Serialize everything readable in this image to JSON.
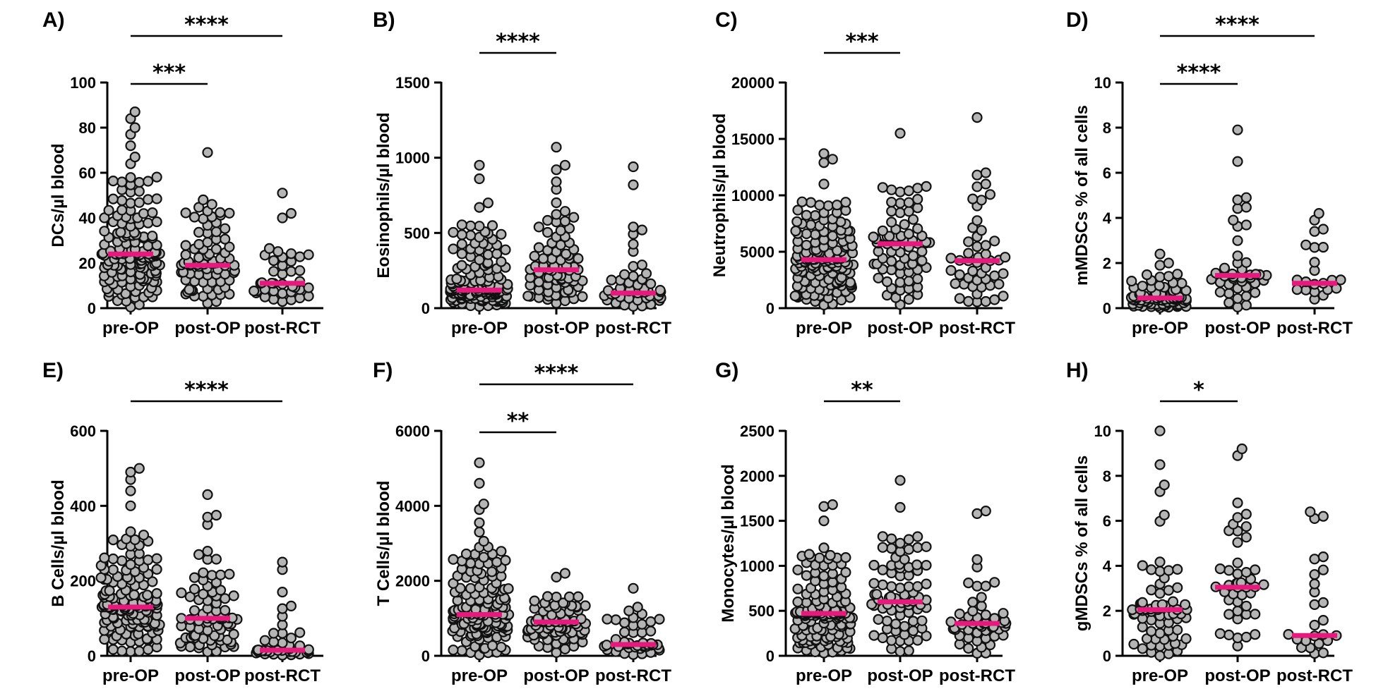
{
  "figure": {
    "x_categories": [
      "pre-OP",
      "post-OP",
      "post-RCT"
    ]
  },
  "chart_data": [
    {
      "panel": "A)",
      "type": "scatter",
      "ylabel": "DCs/µl blood",
      "ylim": [
        0,
        100
      ],
      "yticks": [
        0,
        20,
        40,
        60,
        80,
        100
      ],
      "tick_labels": [
        "0",
        "20",
        "40",
        "60",
        "80",
        "100"
      ],
      "categories": [
        "pre-OP",
        "post-OP",
        "post-RCT"
      ],
      "medians": [
        24,
        19,
        11
      ],
      "n": [
        150,
        80,
        40
      ],
      "ranges": [
        [
          0,
          87
        ],
        [
          0,
          69
        ],
        [
          0,
          51
        ]
      ],
      "outliers": [
        [
          87,
          84,
          80,
          77,
          72,
          67,
          64
        ],
        [
          69,
          48,
          46
        ],
        [
          51,
          42,
          40
        ]
      ],
      "comparisons": [
        {
          "groups": [
            0,
            2
          ],
          "label": "****"
        },
        {
          "groups": [
            0,
            1
          ],
          "label": "***"
        }
      ]
    },
    {
      "panel": "B)",
      "type": "scatter",
      "ylabel": "Eosinophils/µl blood",
      "ylim": [
        0,
        1500
      ],
      "yticks": [
        0,
        500,
        1000,
        1500
      ],
      "tick_labels": [
        "0",
        "500",
        "1000",
        "1500"
      ],
      "categories": [
        "pre-OP",
        "post-OP",
        "post-RCT"
      ],
      "medians": [
        120,
        255,
        100
      ],
      "n": [
        150,
        80,
        45
      ],
      "ranges": [
        [
          0,
          950
        ],
        [
          0,
          1070
        ],
        [
          0,
          940
        ]
      ],
      "outliers": [
        [
          950,
          860,
          700,
          670
        ],
        [
          1070,
          950,
          920,
          840,
          790
        ],
        [
          940,
          820,
          540,
          520
        ]
      ],
      "comparisons": [
        {
          "groups": [
            0,
            1
          ],
          "label": "****"
        }
      ]
    },
    {
      "panel": "C)",
      "type": "scatter",
      "ylabel": "Neutrophils/µl blood",
      "ylim": [
        0,
        20000
      ],
      "yticks": [
        0,
        5000,
        10000,
        15000,
        20000
      ],
      "tick_labels": [
        "0",
        "5000",
        "10000",
        "15000",
        "20000"
      ],
      "categories": [
        "pre-OP",
        "post-OP",
        "post-RCT"
      ],
      "medians": [
        4300,
        5700,
        4200
      ],
      "n": [
        150,
        75,
        50
      ],
      "ranges": [
        [
          0,
          13700
        ],
        [
          0,
          15500
        ],
        [
          0,
          16900
        ]
      ],
      "outliers": [
        [
          13700,
          13200,
          12900,
          11000
        ],
        [
          15500,
          10700,
          10400
        ],
        [
          16900,
          12000,
          11800,
          11000
        ]
      ],
      "comparisons": [
        {
          "groups": [
            0,
            1
          ],
          "label": "***"
        }
      ]
    },
    {
      "panel": "D)",
      "type": "scatter",
      "ylabel": "mMDSCs % of all cells",
      "ylim": [
        0,
        10
      ],
      "yticks": [
        0,
        2,
        4,
        6,
        8,
        10
      ],
      "tick_labels": [
        "0",
        "2",
        "4",
        "6",
        "8",
        "10"
      ],
      "categories": [
        "pre-OP",
        "post-OP",
        "post-RCT"
      ],
      "medians": [
        0.45,
        1.45,
        1.1
      ],
      "n": [
        85,
        42,
        22
      ],
      "ranges": [
        [
          0,
          2.4
        ],
        [
          0,
          7.9
        ],
        [
          0,
          4.2
        ]
      ],
      "outliers": [
        [
          2.4,
          2.0,
          1.9
        ],
        [
          7.9,
          6.5,
          4.9,
          4.8,
          3.9
        ],
        [
          4.2,
          3.9,
          3.5,
          3.4,
          2.7
        ]
      ],
      "comparisons": [
        {
          "groups": [
            0,
            2
          ],
          "label": "****"
        },
        {
          "groups": [
            0,
            1
          ],
          "label": "****"
        }
      ]
    },
    {
      "panel": "E)",
      "type": "scatter",
      "ylabel": "B Cells/µl blood",
      "ylim": [
        0,
        600
      ],
      "yticks": [
        0,
        200,
        400,
        600
      ],
      "tick_labels": [
        "0",
        "200",
        "400",
        "600"
      ],
      "categories": [
        "pre-OP",
        "post-OP",
        "post-RCT"
      ],
      "medians": [
        130,
        100,
        15
      ],
      "n": [
        150,
        80,
        40
      ],
      "ranges": [
        [
          0,
          500
        ],
        [
          0,
          430
        ],
        [
          0,
          250
        ]
      ],
      "outliers": [
        [
          500,
          490,
          470,
          440,
          400
        ],
        [
          430,
          375,
          370,
          350
        ],
        [
          250,
          230,
          170,
          60
        ]
      ],
      "comparisons": [
        {
          "groups": [
            0,
            2
          ],
          "label": "****"
        }
      ]
    },
    {
      "panel": "F)",
      "type": "scatter",
      "ylabel": "T Cells/µl blood",
      "ylim": [
        0,
        6000
      ],
      "yticks": [
        0,
        2000,
        4000,
        6000
      ],
      "tick_labels": [
        "0",
        "2000",
        "4000",
        "6000"
      ],
      "categories": [
        "pre-OP",
        "post-OP",
        "post-RCT"
      ],
      "medians": [
        1100,
        900,
        300
      ],
      "n": [
        150,
        80,
        45
      ],
      "ranges": [
        [
          0,
          5150
        ],
        [
          0,
          2200
        ],
        [
          0,
          1800
        ]
      ],
      "outliers": [
        [
          5150,
          4600,
          4050,
          3900,
          3550,
          3300
        ],
        [
          2200,
          2100
        ],
        [
          1800,
          1300,
          1200
        ]
      ],
      "comparisons": [
        {
          "groups": [
            0,
            2
          ],
          "label": "****"
        },
        {
          "groups": [
            0,
            1
          ],
          "label": "**"
        }
      ]
    },
    {
      "panel": "G)",
      "type": "scatter",
      "ylabel": "Monocytes/µl blood",
      "ylim": [
        0,
        2500
      ],
      "yticks": [
        0,
        500,
        1000,
        1500,
        2000,
        2500
      ],
      "tick_labels": [
        "0",
        "500",
        "1000",
        "1500",
        "2000",
        "2500"
      ],
      "categories": [
        "pre-OP",
        "post-OP",
        "post-RCT"
      ],
      "medians": [
        470,
        600,
        360
      ],
      "n": [
        150,
        80,
        50
      ],
      "ranges": [
        [
          0,
          1680
        ],
        [
          0,
          1950
        ],
        [
          0,
          1610
        ]
      ],
      "outliers": [
        [
          1680,
          1660,
          1500,
          1200
        ],
        [
          1950,
          1650,
          1300
        ],
        [
          1610,
          1580,
          1070
        ]
      ],
      "comparisons": [
        {
          "groups": [
            0,
            1
          ],
          "label": "**"
        }
      ]
    },
    {
      "panel": "H)",
      "type": "scatter",
      "ylabel": "gMDSCs % of all cells",
      "ylim": [
        0,
        10
      ],
      "yticks": [
        0,
        2,
        4,
        6,
        8,
        10
      ],
      "tick_labels": [
        "0",
        "2",
        "4",
        "6",
        "8",
        "10"
      ],
      "categories": [
        "pre-OP",
        "post-OP",
        "post-RCT"
      ],
      "medians": [
        2.05,
        3.05,
        0.9
      ],
      "n": [
        75,
        45,
        25
      ],
      "ranges": [
        [
          0,
          10
        ],
        [
          0,
          9.2
        ],
        [
          0,
          6.4
        ]
      ],
      "outliers": [
        [
          10,
          8.5,
          7.6,
          7.3
        ],
        [
          9.2,
          8.9,
          6.8
        ],
        [
          6.4,
          6.2,
          6.1,
          4.4,
          4.3
        ]
      ],
      "comparisons": [
        {
          "groups": [
            0,
            1
          ],
          "label": "*"
        }
      ]
    }
  ]
}
